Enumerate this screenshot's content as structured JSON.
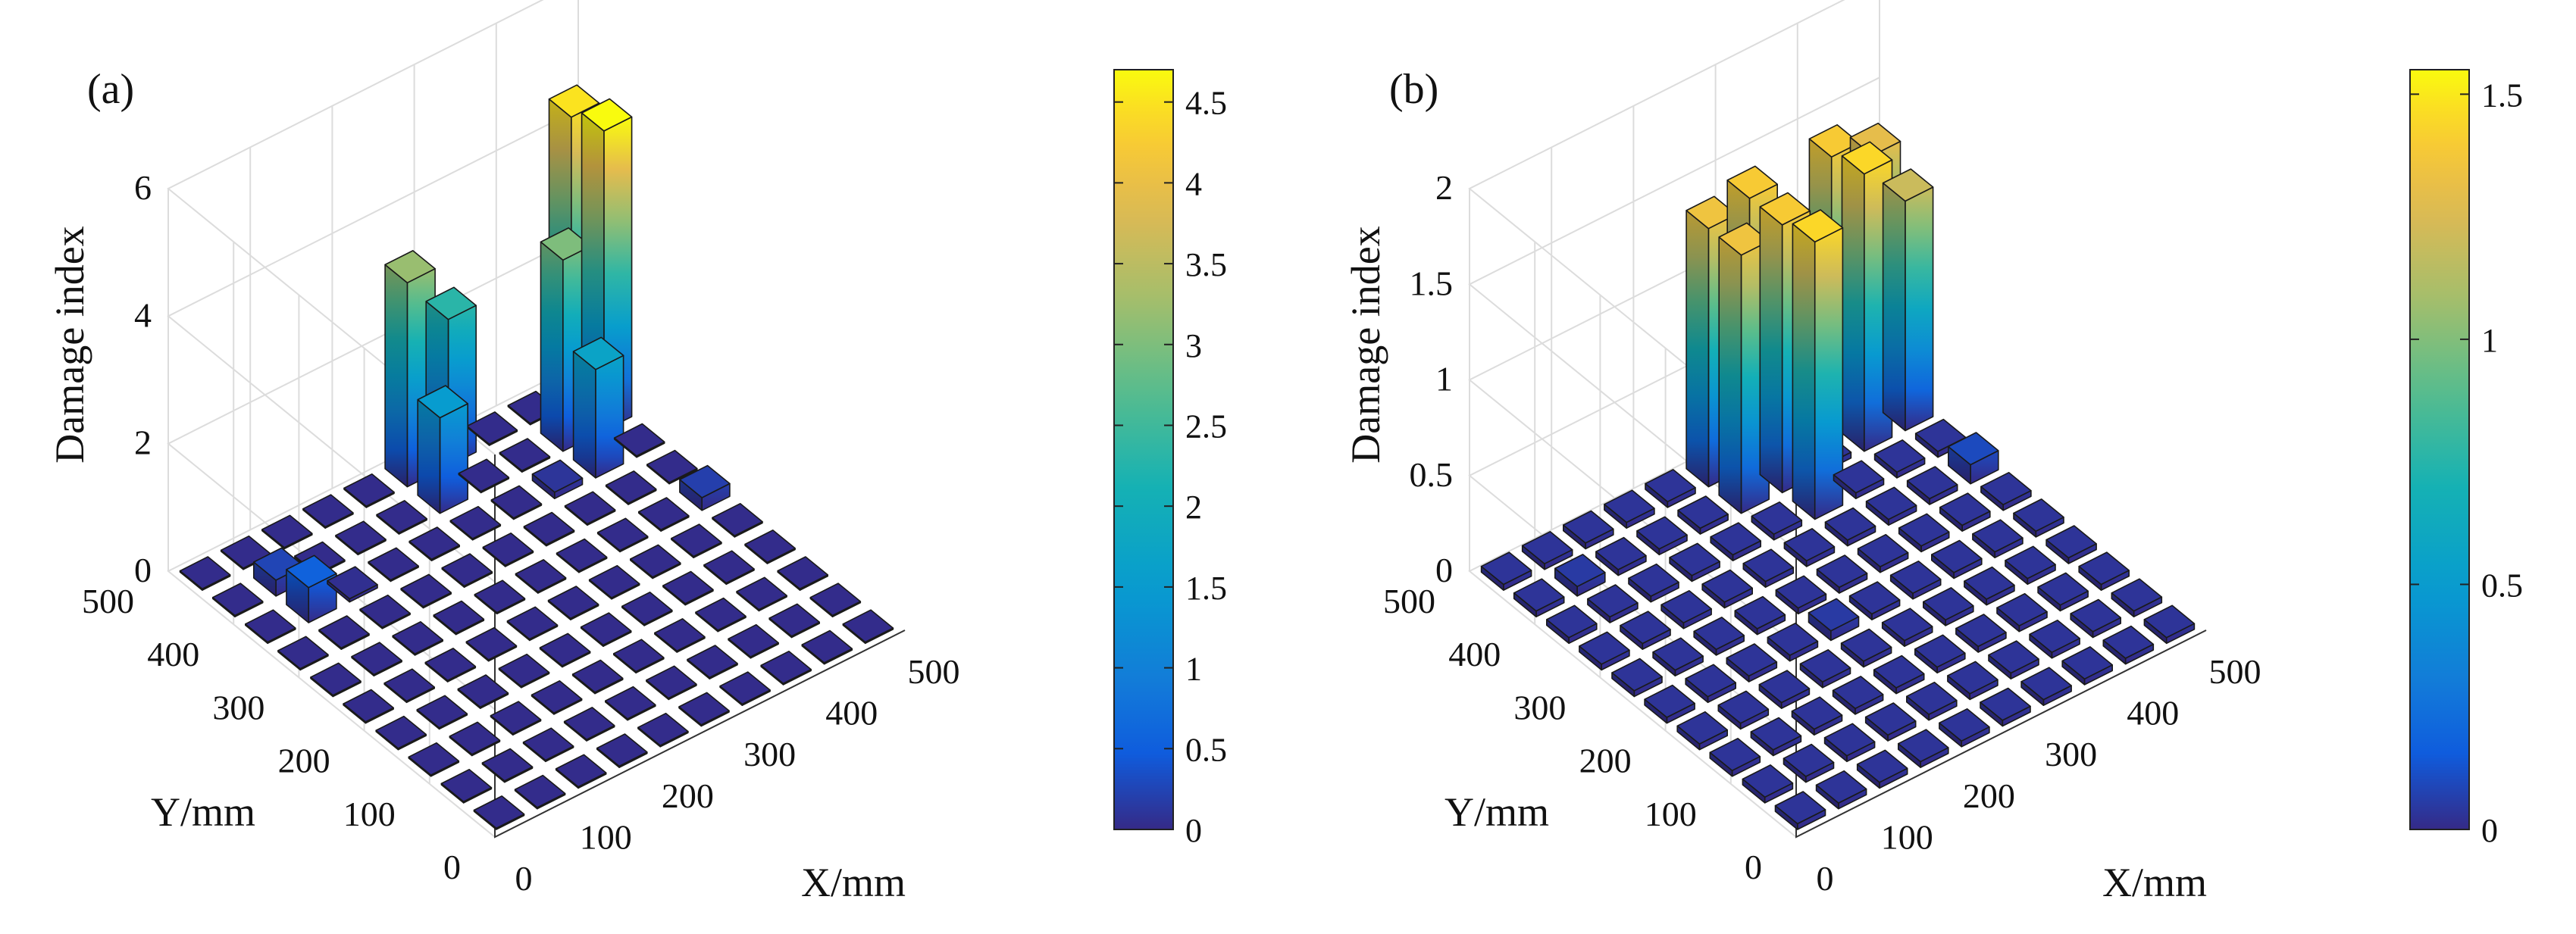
{
  "chart_data": [
    {
      "type": "bar3d",
      "panel_label": "(a)",
      "xlabel": "X/mm",
      "ylabel": "Y/mm",
      "zlabel": "Damage index",
      "x_ticks": [
        "0",
        "100",
        "200",
        "300",
        "400",
        "500"
      ],
      "y_ticks": [
        "0",
        "100",
        "200",
        "300",
        "400",
        "500"
      ],
      "z_ticks": [
        "0",
        "2",
        "4",
        "6"
      ],
      "xlim": [
        0,
        500
      ],
      "ylim": [
        0,
        500
      ],
      "zlim": [
        0,
        6
      ],
      "grid": true,
      "grid_size": [
        10,
        10
      ],
      "cell_size_mm": 50,
      "colormap": "parula",
      "colorbar": {
        "ticks": [
          "0",
          "0.5",
          "1",
          "1.5",
          "2",
          "2.5",
          "3",
          "3.5",
          "4",
          "4.5"
        ],
        "min": 0,
        "max": 4.7
      },
      "bars": [
        {
          "i": 0,
          "j": 9,
          "z": 0.02
        },
        {
          "i": 0,
          "j": 8,
          "z": 0.02
        },
        {
          "i": 0,
          "j": 7,
          "z": 0.02
        },
        {
          "i": 1,
          "j": 7,
          "z": 0.55
        },
        {
          "i": 1,
          "j": 8,
          "z": 0.25
        },
        {
          "i": 2,
          "j": 7,
          "z": 0.05
        },
        {
          "i": 5,
          "j": 9,
          "z": 3.2
        },
        {
          "i": 5,
          "j": 8,
          "z": 1.5
        },
        {
          "i": 6,
          "j": 9,
          "z": 2.3
        },
        {
          "i": 7,
          "j": 7,
          "z": 0.1
        },
        {
          "i": 8,
          "j": 8,
          "z": 3.0
        },
        {
          "i": 9,
          "j": 9,
          "z": 4.5
        },
        {
          "i": 9,
          "j": 8,
          "z": 4.7
        },
        {
          "i": 8,
          "j": 7,
          "z": 1.7
        },
        {
          "i": 9,
          "j": 5,
          "z": 0.2
        }
      ],
      "base_value": 0.02
    },
    {
      "type": "bar3d",
      "panel_label": "(b)",
      "xlabel": "X/mm",
      "ylabel": "Y/mm",
      "zlabel": "Damage index",
      "x_ticks": [
        "0",
        "100",
        "200",
        "300",
        "400",
        "500"
      ],
      "y_ticks": [
        "0",
        "100",
        "200",
        "300",
        "400",
        "500"
      ],
      "z_ticks": [
        "0",
        "0.5",
        "1",
        "1.5",
        "2"
      ],
      "xlim": [
        0,
        500
      ],
      "ylim": [
        0,
        500
      ],
      "zlim": [
        0,
        2
      ],
      "grid": true,
      "grid_size": [
        10,
        10
      ],
      "cell_size_mm": 50,
      "colormap": "parula",
      "colorbar": {
        "ticks": [
          "0",
          "0.5",
          "1",
          "1.5"
        ],
        "min": 0,
        "max": 1.55
      },
      "bars": [
        {
          "i": 1,
          "j": 8,
          "z": 0.05
        },
        {
          "i": 5,
          "j": 9,
          "z": 1.35
        },
        {
          "i": 5,
          "j": 8,
          "z": 1.35
        },
        {
          "i": 6,
          "j": 9,
          "z": 1.4
        },
        {
          "i": 6,
          "j": 8,
          "z": 1.4
        },
        {
          "i": 6,
          "j": 7,
          "z": 1.45
        },
        {
          "i": 7,
          "j": 9,
          "z": 1.1
        },
        {
          "i": 8,
          "j": 9,
          "z": 1.4
        },
        {
          "i": 8,
          "j": 8,
          "z": 1.45
        },
        {
          "i": 9,
          "j": 9,
          "z": 1.3
        },
        {
          "i": 9,
          "j": 8,
          "z": 1.2
        },
        {
          "i": 9,
          "j": 6,
          "z": 0.1
        },
        {
          "i": 4,
          "j": 4,
          "z": 0.05
        }
      ],
      "base_value": 0.03
    }
  ]
}
